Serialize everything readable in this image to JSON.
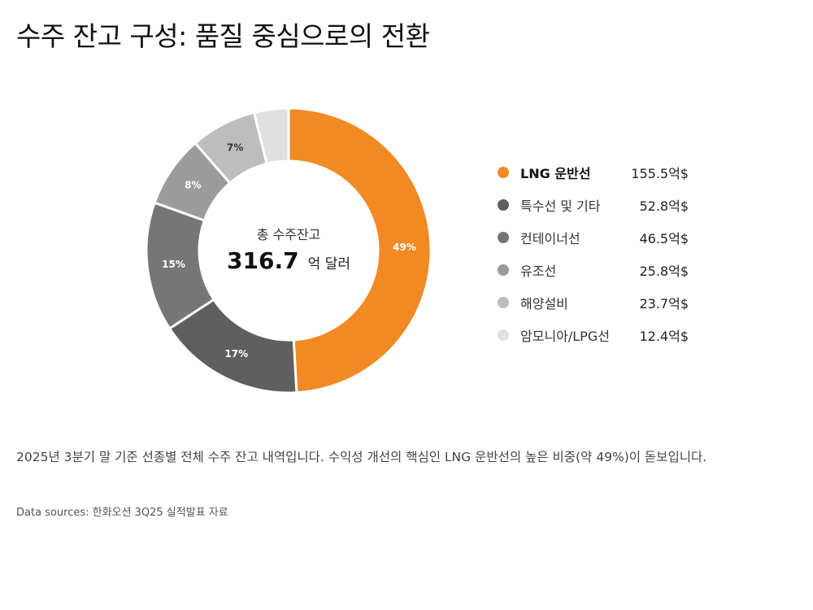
{
  "title": "수주 잔고 구성: 품질 중심으로의 전환",
  "center": {
    "label": "총 수주잔고",
    "value": "316.7",
    "unit": "억 달러"
  },
  "description": "2025년 3분기 말 기준 선종별 전체 수주 잔고 내역입니다. 수익성 개선의 핵심인 LNG 운반선의 높은 비중(약 49%)이 돋보입니다.",
  "source": "Data sources: 한화오션 3Q25 실적발표 자료",
  "chart_data": {
    "type": "pie",
    "donut": true,
    "total": 316.7,
    "total_unit": "억 달러",
    "value_unit": "억$",
    "legend_position": "right",
    "slices": [
      {
        "name": "LNG 운반선",
        "value": 155.5,
        "display": "155.5억$",
        "pct": 49,
        "pct_label": "49%",
        "color": "#F28A24",
        "highlight": true
      },
      {
        "name": "특수선 및 기타",
        "value": 52.8,
        "display": "52.8억$",
        "pct": 17,
        "pct_label": "17%",
        "color": "#5F5F5F",
        "highlight": false
      },
      {
        "name": "컨테이너선",
        "value": 46.5,
        "display": "46.5억$",
        "pct": 15,
        "pct_label": "15%",
        "color": "#767676",
        "highlight": false
      },
      {
        "name": "유조선",
        "value": 25.8,
        "display": "25.8억$",
        "pct": 8,
        "pct_label": "8%",
        "color": "#9B9B9B",
        "highlight": false
      },
      {
        "name": "해양설비",
        "value": 23.7,
        "display": "23.7억$",
        "pct": 7,
        "pct_label": "7%",
        "color": "#BDBDBD",
        "highlight": false
      },
      {
        "name": "암모니아/LPG선",
        "value": 12.4,
        "display": "12.4억$",
        "pct": 4,
        "pct_label": "",
        "color": "#E0E0E0",
        "highlight": false
      }
    ]
  }
}
